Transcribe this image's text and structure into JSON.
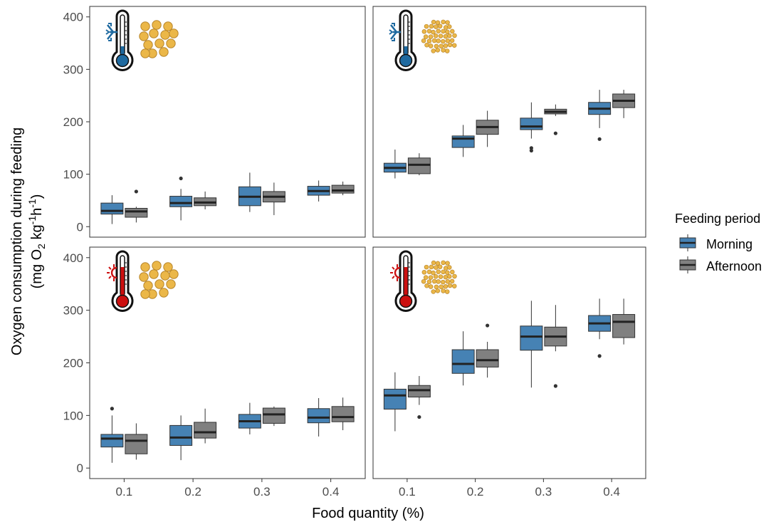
{
  "chart_data": {
    "type": "box",
    "xlabel": "Food quantity (%)",
    "ylabel_line1": "Oxygen consumption during feeding",
    "ylabel_line2": {
      "pre": "(mg O",
      "sub1": "2",
      "mid1": " kg",
      "sup1": "-1",
      "mid2": "h",
      "sup2": "-1",
      "post": ")"
    },
    "categories": [
      "0.1",
      "0.2",
      "0.3",
      "0.4"
    ],
    "yticks": [
      0,
      100,
      200,
      300,
      400
    ],
    "ylim": [
      -20,
      420
    ],
    "legend": {
      "title": "Feeding period",
      "position": "right",
      "entries": [
        {
          "name": "Morning",
          "color": "#4682B4"
        },
        {
          "name": "Afternoon",
          "color": "#808080"
        }
      ]
    },
    "grid": false,
    "panels": [
      {
        "temperature": "cold",
        "pellet_size": "large",
        "series": [
          {
            "name": "Morning",
            "boxes": [
              {
                "min": 5,
                "q1": 24,
                "median": 30,
                "q3": 45,
                "max": 60,
                "outliers": []
              },
              {
                "min": 12,
                "q1": 38,
                "median": 45,
                "q3": 58,
                "max": 72,
                "outliers": [
                  92
                ]
              },
              {
                "min": 28,
                "q1": 40,
                "median": 57,
                "q3": 76,
                "max": 103,
                "outliers": []
              },
              {
                "min": 48,
                "q1": 60,
                "median": 68,
                "q3": 77,
                "max": 88,
                "outliers": []
              }
            ]
          },
          {
            "name": "Afternoon",
            "boxes": [
              {
                "min": 8,
                "q1": 18,
                "median": 29,
                "q3": 35,
                "max": 38,
                "outliers": [
                  67
                ]
              },
              {
                "min": 33,
                "q1": 40,
                "median": 46,
                "q3": 55,
                "max": 67,
                "outliers": []
              },
              {
                "min": 22,
                "q1": 47,
                "median": 57,
                "q3": 67,
                "max": 84,
                "outliers": []
              },
              {
                "min": 60,
                "q1": 64,
                "median": 69,
                "q3": 79,
                "max": 86,
                "outliers": []
              }
            ]
          }
        ]
      },
      {
        "temperature": "cold",
        "pellet_size": "small",
        "series": [
          {
            "name": "Morning",
            "boxes": [
              {
                "min": 92,
                "q1": 104,
                "median": 112,
                "q3": 121,
                "max": 147,
                "outliers": []
              },
              {
                "min": 133,
                "q1": 151,
                "median": 168,
                "q3": 173,
                "max": 194,
                "outliers": []
              },
              {
                "min": 168,
                "q1": 185,
                "median": 191,
                "q3": 207,
                "max": 237,
                "outliers": [
                  145,
                  150
                ]
              },
              {
                "min": 188,
                "q1": 214,
                "median": 225,
                "q3": 237,
                "max": 261,
                "outliers": [
                  167
                ]
              }
            ]
          },
          {
            "name": "Afternoon",
            "boxes": [
              {
                "min": 98,
                "q1": 101,
                "median": 118,
                "q3": 131,
                "max": 140,
                "outliers": []
              },
              {
                "min": 152,
                "q1": 176,
                "median": 190,
                "q3": 203,
                "max": 221,
                "outliers": []
              },
              {
                "min": 211,
                "q1": 215,
                "median": 219,
                "q3": 224,
                "max": 233,
                "outliers": [
                  178
                ]
              },
              {
                "min": 207,
                "q1": 227,
                "median": 240,
                "q3": 253,
                "max": 261,
                "outliers": []
              }
            ]
          }
        ]
      },
      {
        "temperature": "warm",
        "pellet_size": "large",
        "series": [
          {
            "name": "Morning",
            "boxes": [
              {
                "min": 10,
                "q1": 40,
                "median": 56,
                "q3": 64,
                "max": 100,
                "outliers": [
                  113
                ]
              },
              {
                "min": 15,
                "q1": 43,
                "median": 58,
                "q3": 81,
                "max": 100,
                "outliers": []
              },
              {
                "min": 64,
                "q1": 76,
                "median": 89,
                "q3": 102,
                "max": 124,
                "outliers": []
              },
              {
                "min": 60,
                "q1": 86,
                "median": 96,
                "q3": 113,
                "max": 133,
                "outliers": []
              }
            ]
          },
          {
            "name": "Afternoon",
            "boxes": [
              {
                "min": 16,
                "q1": 27,
                "median": 52,
                "q3": 64,
                "max": 85,
                "outliers": []
              },
              {
                "min": 47,
                "q1": 57,
                "median": 68,
                "q3": 87,
                "max": 113,
                "outliers": []
              },
              {
                "min": 80,
                "q1": 85,
                "median": 102,
                "q3": 114,
                "max": 117,
                "outliers": []
              },
              {
                "min": 72,
                "q1": 88,
                "median": 97,
                "q3": 117,
                "max": 134,
                "outliers": []
              }
            ]
          }
        ]
      },
      {
        "temperature": "warm",
        "pellet_size": "small",
        "series": [
          {
            "name": "Morning",
            "boxes": [
              {
                "min": 70,
                "q1": 112,
                "median": 138,
                "q3": 150,
                "max": 182,
                "outliers": []
              },
              {
                "min": 157,
                "q1": 180,
                "median": 198,
                "q3": 225,
                "max": 260,
                "outliers": []
              },
              {
                "min": 153,
                "q1": 224,
                "median": 250,
                "q3": 270,
                "max": 318,
                "outliers": []
              },
              {
                "min": 245,
                "q1": 260,
                "median": 275,
                "q3": 290,
                "max": 322,
                "outliers": [
                  213
                ]
              }
            ]
          },
          {
            "name": "Afternoon",
            "boxes": [
              {
                "min": 120,
                "q1": 135,
                "median": 148,
                "q3": 157,
                "max": 175,
                "outliers": [
                  97
                ]
              },
              {
                "min": 172,
                "q1": 192,
                "median": 205,
                "q3": 225,
                "max": 240,
                "outliers": [
                  271
                ]
              },
              {
                "min": 222,
                "q1": 232,
                "median": 250,
                "q3": 268,
                "max": 310,
                "outliers": [
                  156
                ]
              },
              {
                "min": 235,
                "q1": 248,
                "median": 278,
                "q3": 292,
                "max": 322,
                "outliers": []
              }
            ]
          }
        ]
      }
    ]
  }
}
